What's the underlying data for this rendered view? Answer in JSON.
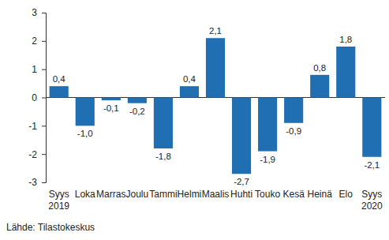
{
  "chart_data": {
    "type": "bar",
    "categories": [
      "Syys\n2019",
      "Loka",
      "Marras",
      "Joulu",
      "Tammi",
      "Helmi",
      "Maalis",
      "Huhti",
      "Touko",
      "Kesä",
      "Heinä",
      "Elo",
      "Syys\n2020"
    ],
    "values": [
      0.4,
      -1.0,
      -0.1,
      -0.2,
      -1.8,
      0.4,
      2.1,
      -2.7,
      -1.9,
      -0.9,
      0.8,
      1.8,
      -2.1
    ],
    "value_labels": [
      "0,4",
      "-1,0",
      "-0,1",
      "-0,2",
      "-1,8",
      "0,4",
      "2,1",
      "-2,7",
      "-1,9",
      "-0,9",
      "0,8",
      "1,8",
      "-2,1"
    ],
    "color": "#1f6fb2",
    "ylim": [
      -3,
      3
    ],
    "yticks": [
      -3,
      -2,
      -1,
      0,
      1,
      2,
      3
    ],
    "grid": false,
    "data_labels": true,
    "source": "Lähde: Tilastokeskus"
  }
}
